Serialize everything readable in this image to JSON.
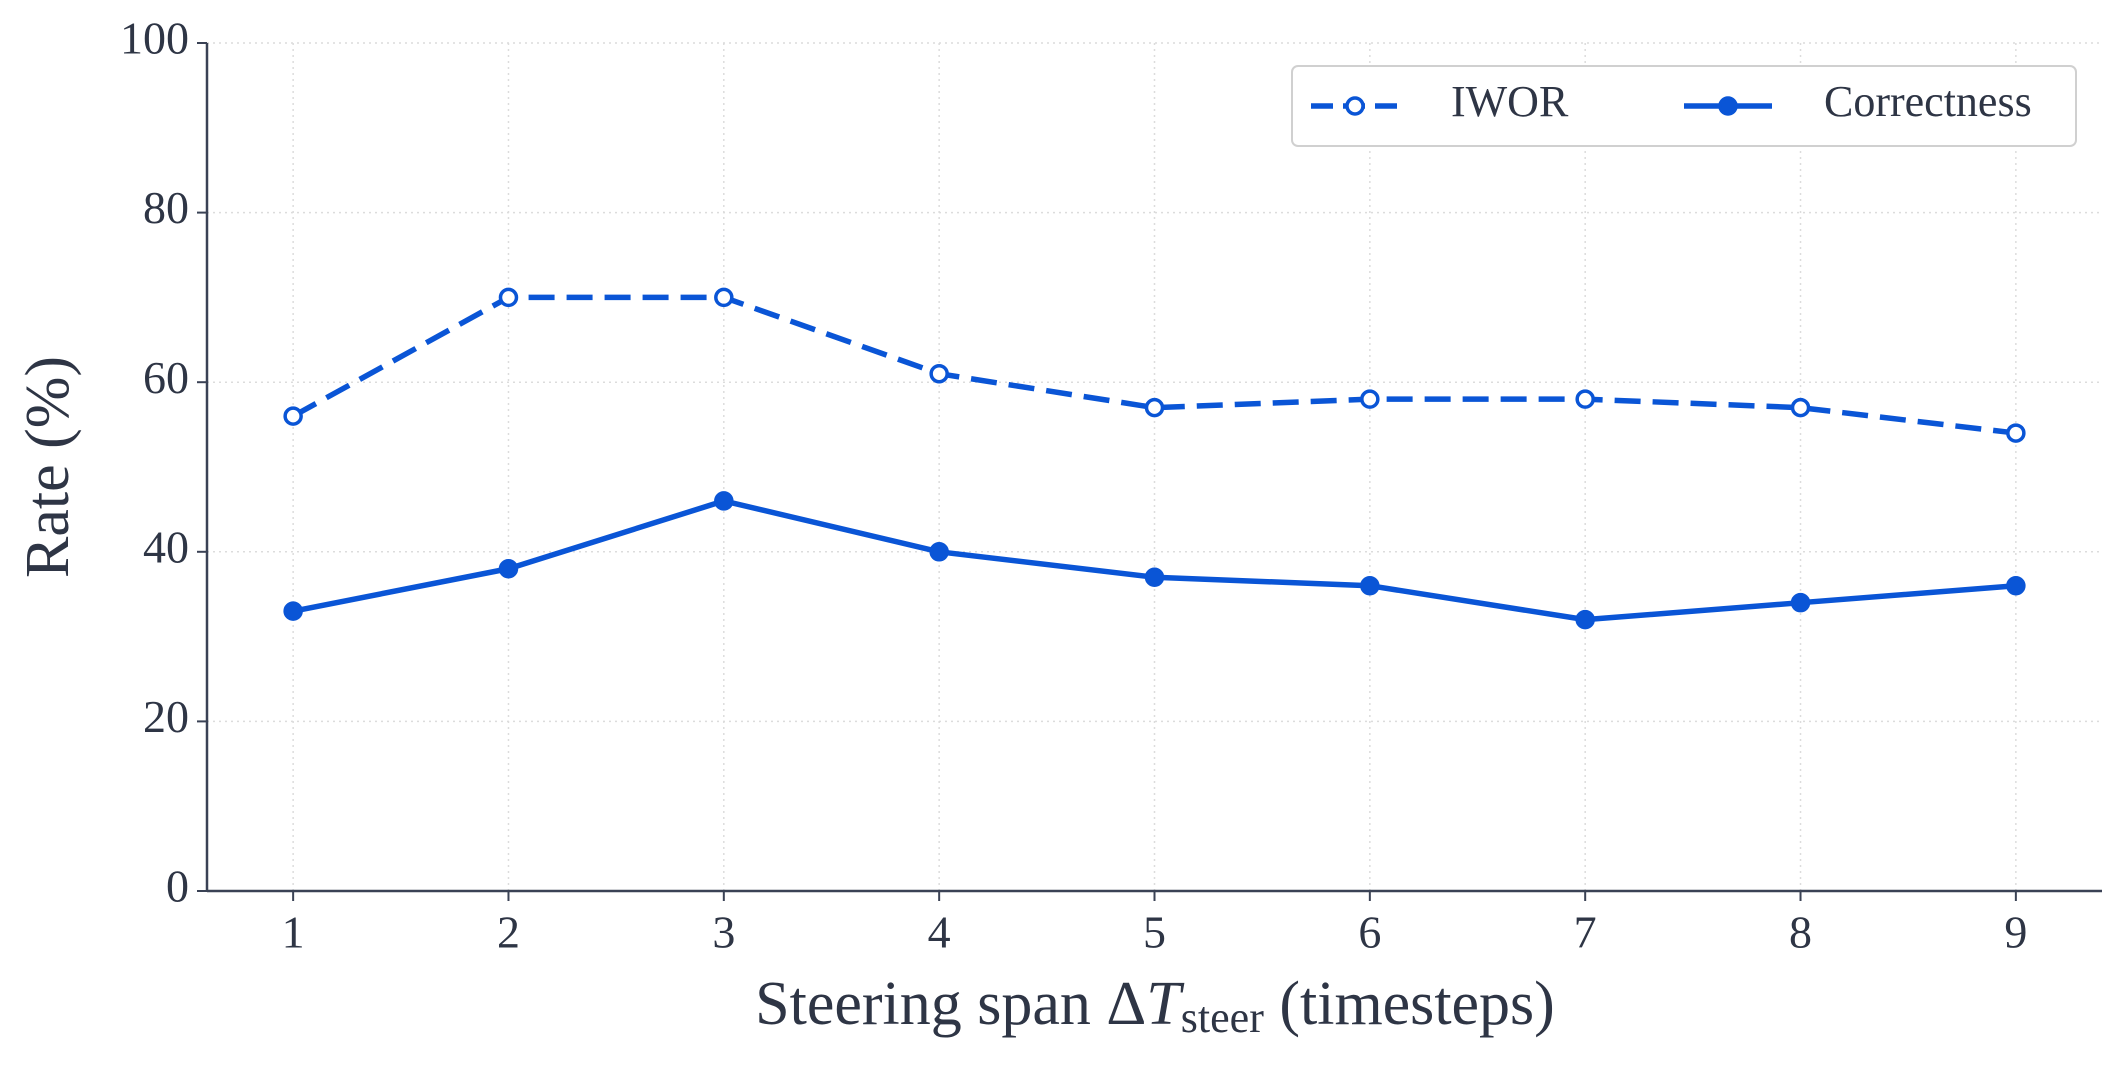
{
  "chart_data": {
    "type": "line",
    "x_label": [
      "Steering span Δ",
      "T",
      "steer",
      " (timesteps)"
    ],
    "y_label": "Rate (%)",
    "x": [
      1,
      2,
      3,
      4,
      5,
      6,
      7,
      8,
      9
    ],
    "series": [
      {
        "name": "IWOR",
        "color": "#0a55d6",
        "linestyle": "dashed",
        "marker_fill": "#ffffff",
        "values": [
          56,
          70,
          70,
          61,
          57,
          58,
          58,
          57,
          54
        ]
      },
      {
        "name": "Correctness",
        "color": "#0a55d6",
        "linestyle": "solid",
        "marker_fill": "#0a55d6",
        "values": [
          33,
          38,
          46,
          40,
          37,
          36,
          32,
          34,
          36
        ]
      }
    ],
    "xlim": [
      0.6,
      9.4
    ],
    "xticks": [
      1,
      2,
      3,
      4,
      5,
      6,
      7,
      8,
      9
    ],
    "ylim": [
      0,
      100
    ],
    "yticks": [
      0,
      20,
      40,
      60,
      80,
      100
    ],
    "grid": true,
    "legend": "upper right"
  }
}
